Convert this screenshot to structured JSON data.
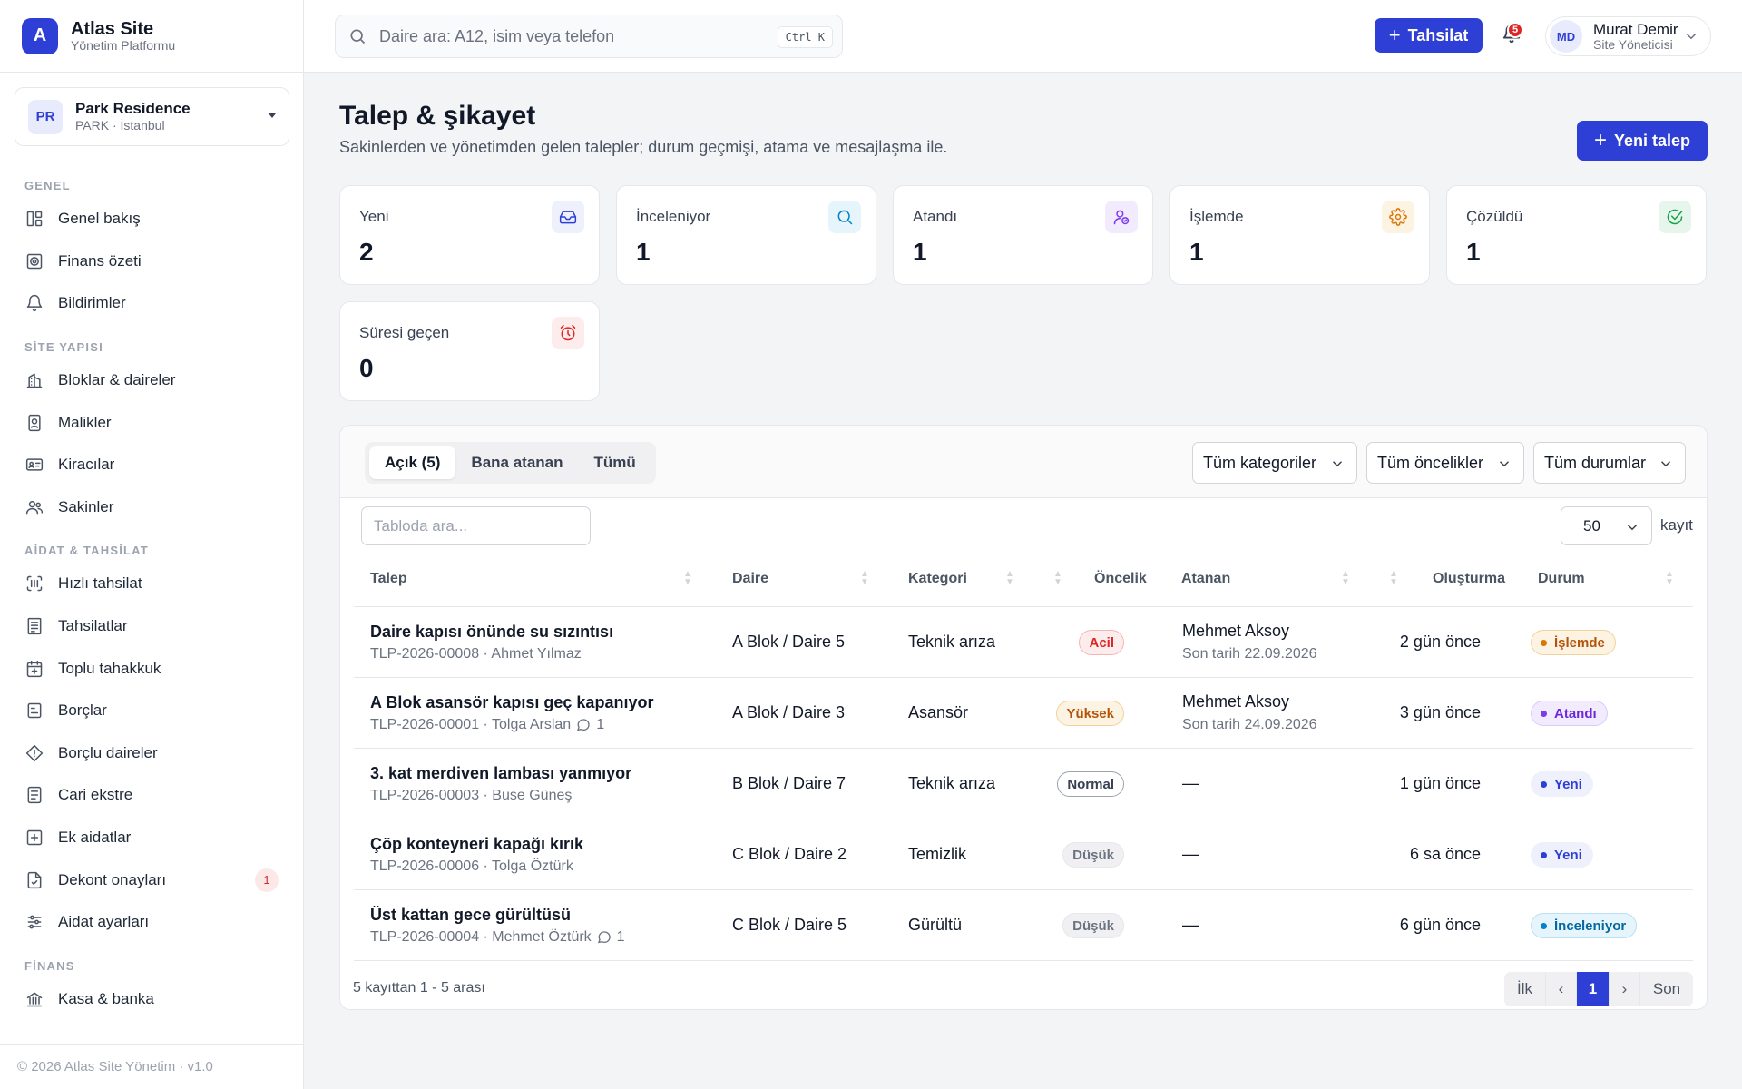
{
  "brand": {
    "title": "Atlas Site",
    "subtitle": "Yönetim Platformu",
    "logo_letter": "A",
    "accent": "#2e3fd6"
  },
  "site": {
    "initials": "PR",
    "name": "Park Residence",
    "location": "PARK · İstanbul"
  },
  "nav": {
    "sections": [
      {
        "label": "GENEL",
        "items": [
          {
            "label": "Genel bakış",
            "icon": "layout-icon"
          },
          {
            "label": "Finans özeti",
            "icon": "finance-icon"
          },
          {
            "label": "Bildirimler",
            "icon": "bell-icon"
          }
        ]
      },
      {
        "label": "SİTE YAPISI",
        "items": [
          {
            "label": "Bloklar & daireler",
            "icon": "building-icon"
          },
          {
            "label": "Malikler",
            "icon": "owner-icon"
          },
          {
            "label": "Kiracılar",
            "icon": "id-card-icon"
          },
          {
            "label": "Sakinler",
            "icon": "users-icon"
          }
        ]
      },
      {
        "label": "AİDAT & TAHSİLAT",
        "items": [
          {
            "label": "Hızlı tahsilat",
            "icon": "scan-icon"
          },
          {
            "label": "Tahsilatlar",
            "icon": "receipt-icon"
          },
          {
            "label": "Toplu tahakkuk",
            "icon": "calendar-plus-icon"
          },
          {
            "label": "Borçlar",
            "icon": "debt-icon"
          },
          {
            "label": "Borçlu daireler",
            "icon": "alert-diamond-icon"
          },
          {
            "label": "Cari ekstre",
            "icon": "statement-icon"
          },
          {
            "label": "Ek aidatlar",
            "icon": "plus-square-icon"
          },
          {
            "label": "Dekont onayları",
            "icon": "file-check-icon",
            "badge": "1"
          },
          {
            "label": "Aidat ayarları",
            "icon": "sliders-icon"
          }
        ]
      },
      {
        "label": "FİNANS",
        "items": [
          {
            "label": "Kasa & banka",
            "icon": "bank-icon"
          }
        ]
      }
    ]
  },
  "footer": {
    "text": "© 2026 Atlas Site Yönetim · v1.0"
  },
  "header": {
    "search_placeholder": "Daire ara: A12, isim veya telefon",
    "shortcut": "Ctrl K",
    "collect_label": "Tahsilat",
    "notification_count": "5",
    "user": {
      "initials": "MD",
      "name": "Murat Demir",
      "role": "Site Yöneticisi"
    }
  },
  "page": {
    "title": "Talep & şikayet",
    "subtitle": "Sakinlerden ve yönetimden gelen talepler; durum geçmişi, atama ve mesajlaşma ile.",
    "new_button": "Yeni talep"
  },
  "stats": [
    {
      "label": "Yeni",
      "value": "2",
      "icon": "inbox-icon",
      "color": "#2e3fd6",
      "bg": "#eef0fb"
    },
    {
      "label": "İnceleniyor",
      "value": "1",
      "icon": "search-icon",
      "color": "#0284c7",
      "bg": "#e6f4fb"
    },
    {
      "label": "Atandı",
      "value": "1",
      "icon": "user-check-icon",
      "color": "#7c3aed",
      "bg": "#f1ebfd"
    },
    {
      "label": "İşlemde",
      "value": "1",
      "icon": "gear-icon",
      "color": "#d97706",
      "bg": "#fdf3e3"
    },
    {
      "label": "Çözüldü",
      "value": "1",
      "icon": "check-circle-icon",
      "color": "#16a34a",
      "bg": "#e7f6ec"
    },
    {
      "label": "Süresi geçen",
      "value": "0",
      "icon": "alarm-clock-icon",
      "color": "#dc2626",
      "bg": "#fdecec"
    }
  ],
  "tabs": [
    "Açık (5)",
    "Bana atanan",
    "Tümü"
  ],
  "filters": [
    "Tüm kategoriler",
    "Tüm öncelikler",
    "Tüm durumlar"
  ],
  "table": {
    "search_placeholder": "Tabloda ara...",
    "page_size": "50",
    "page_size_suffix": "kayıt",
    "columns": [
      "Talep",
      "Daire",
      "Kategori",
      "Öncelik",
      "Atanan",
      "Oluşturma",
      "Durum"
    ],
    "rows": [
      {
        "title": "Daire kapısı önünde su sızıntısı",
        "meta": "TLP-2026-00008 · Ahmet Yılmaz",
        "messages": "",
        "unit": "A Blok / Daire 5",
        "category": "Teknik arıza",
        "priority": "Acil",
        "assignee": "Mehmet Aksoy",
        "due": "Son tarih 22.09.2026",
        "created": "2 gün önce",
        "status": "İşlemde"
      },
      {
        "title": "A Blok asansör kapısı geç kapanıyor",
        "meta": "TLP-2026-00001 · Tolga Arslan",
        "messages": "1",
        "unit": "A Blok / Daire 3",
        "category": "Asansör",
        "priority": "Yüksek",
        "assignee": "Mehmet Aksoy",
        "due": "Son tarih 24.09.2026",
        "created": "3 gün önce",
        "status": "Atandı"
      },
      {
        "title": "3. kat merdiven lambası yanmıyor",
        "meta": "TLP-2026-00003 · Buse Güneş",
        "messages": "",
        "unit": "B Blok / Daire 7",
        "category": "Teknik arıza",
        "priority": "Normal",
        "assignee": "—",
        "due": "",
        "created": "1 gün önce",
        "status": "Yeni"
      },
      {
        "title": "Çöp konteyneri kapağı kırık",
        "meta": "TLP-2026-00006 · Tolga Öztürk",
        "messages": "",
        "unit": "C Blok / Daire 2",
        "category": "Temizlik",
        "priority": "Düşük",
        "assignee": "—",
        "due": "",
        "created": "6 sa önce",
        "status": "Yeni"
      },
      {
        "title": "Üst kattan gece gürültüsü",
        "meta": "TLP-2026-00004 · Mehmet Öztürk",
        "messages": "1",
        "unit": "C Blok / Daire 5",
        "category": "Gürültü",
        "priority": "Düşük",
        "assignee": "—",
        "due": "",
        "created": "6 gün önce",
        "status": "İnceleniyor"
      }
    ],
    "summary": "5 kayıttan 1 - 5 arası"
  },
  "pagination": {
    "first": "İlk",
    "prev": "‹",
    "current": "1",
    "next": "›",
    "last": "Son"
  },
  "priority_styles": {
    "Acil": {
      "color": "#dc2626",
      "bg": "#fdecec",
      "border": "#f5b5b5"
    },
    "Yüksek": {
      "color": "#b45309",
      "bg": "#fdf3e3",
      "border": "#f3d29a"
    },
    "Normal": {
      "color": "#374151",
      "bg": "#ffffff",
      "border": "#9ca3af"
    },
    "Düşük": {
      "color": "#6b7280",
      "bg": "#f0f0f2",
      "border": "#e5e7eb"
    }
  },
  "status_styles": {
    "İşlemde": {
      "color": "#b45309",
      "bg": "#fdf3e3",
      "border": "#f3d29a",
      "dot": "#d97706"
    },
    "Atandı": {
      "color": "#6d28d9",
      "bg": "#f1ebfd",
      "border": "#dccafb",
      "dot": "#7c3aed"
    },
    "Yeni": {
      "color": "#2e3fd6",
      "bg": "#eef0fb",
      "border": "#eef0fb",
      "dot": "#2e3fd6"
    },
    "İnceleniyor": {
      "color": "#0369a1",
      "bg": "#e6f4fb",
      "border": "#b9e0f5",
      "dot": "#0284c7"
    }
  }
}
